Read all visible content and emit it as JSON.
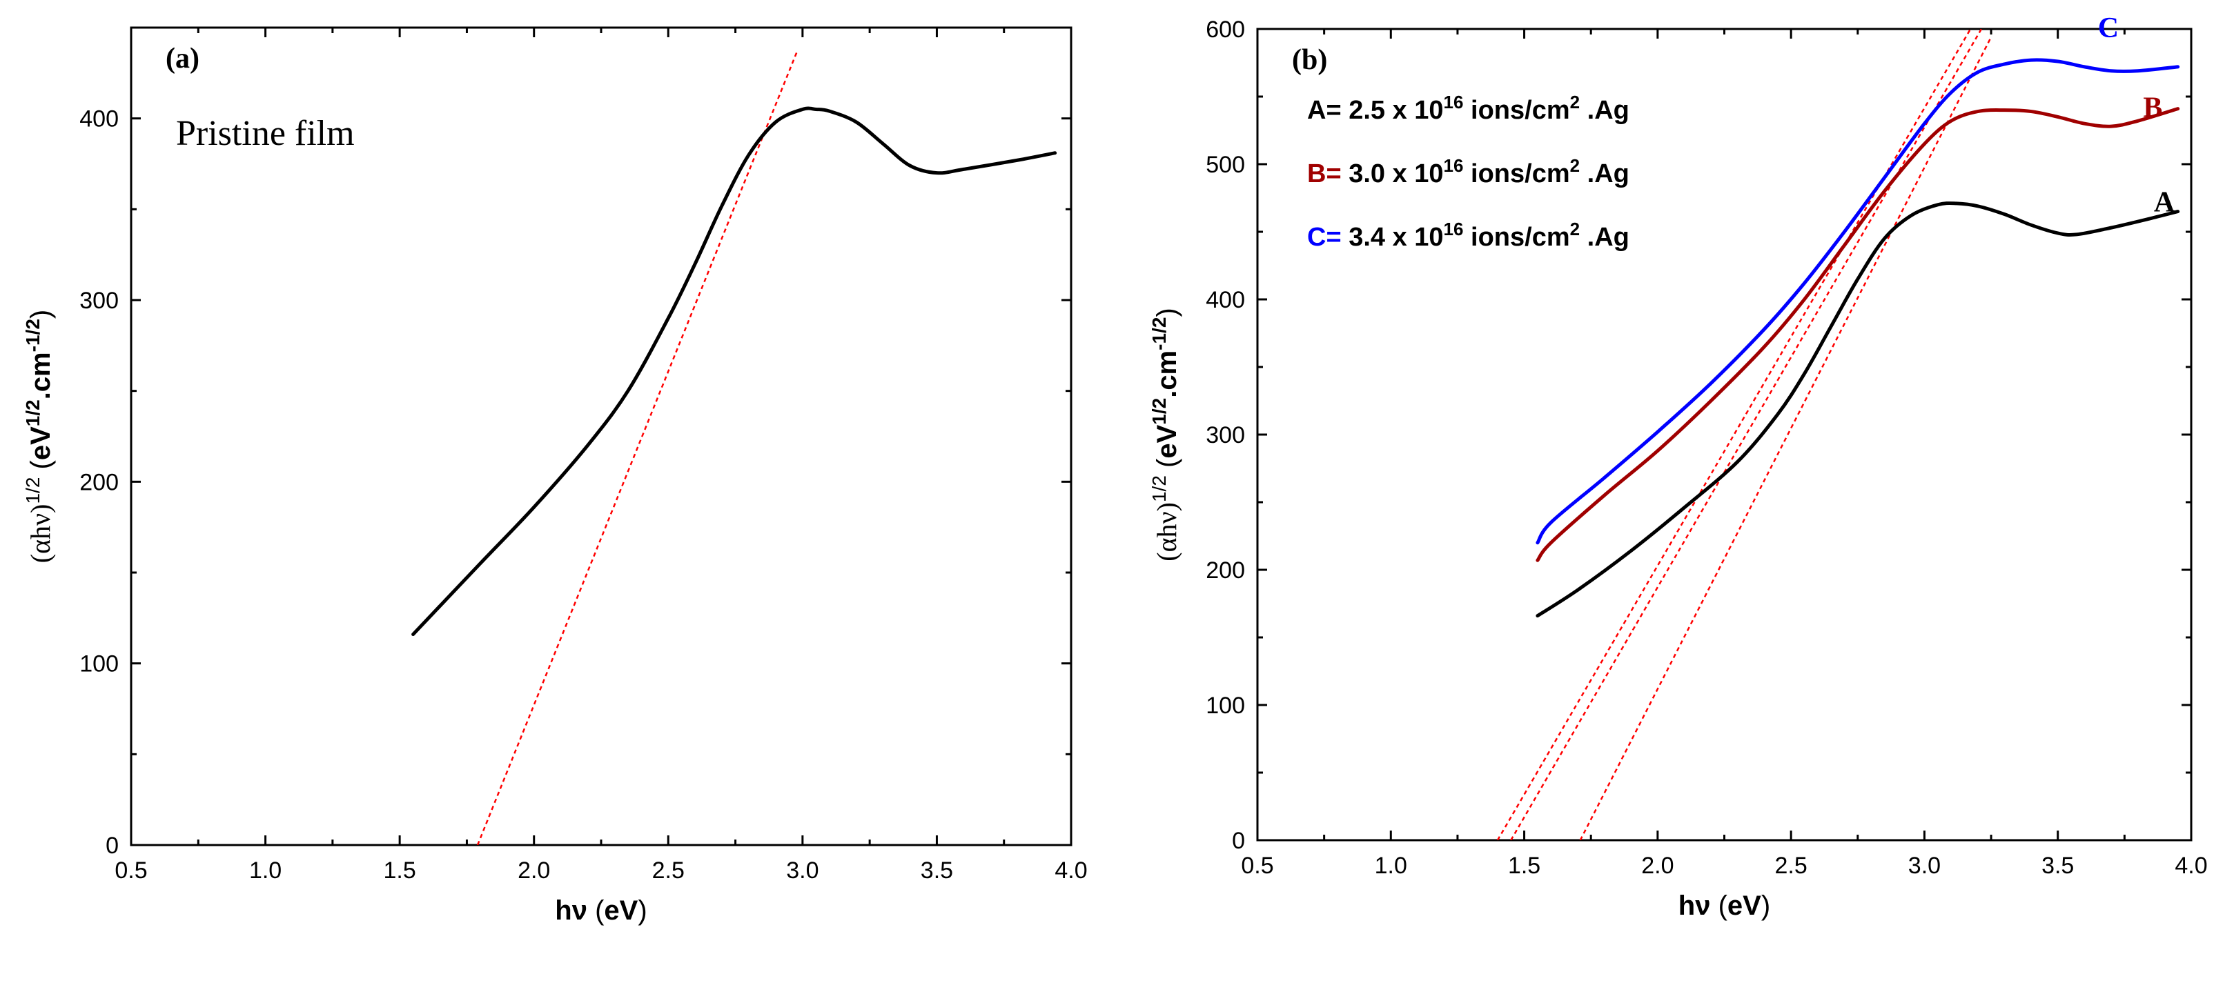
{
  "chart_data": [
    {
      "type": "line",
      "panel_label": "(a)",
      "annotation": "Pristine film",
      "xlabel": "hν (eV)",
      "ylabel": "(αhν)1/2 (eV1/2.cm-1/2)",
      "xlim": [
        0.5,
        4.0
      ],
      "ylim": [
        0,
        450
      ],
      "x_ticks": [
        0.5,
        1.0,
        1.5,
        2.0,
        2.5,
        3.0,
        3.5,
        4.0
      ],
      "x_tick_labels": [
        "0.5",
        "1.0",
        "1.5",
        "2.0",
        "2.5",
        "3.0",
        "3.5",
        "4.0"
      ],
      "y_ticks": [
        0,
        100,
        200,
        300,
        400
      ],
      "y_tick_labels": [
        "0",
        "100",
        "200",
        "300",
        "400"
      ],
      "series": [
        {
          "name": "Pristine film",
          "color": "#000000",
          "x": [
            1.55,
            1.8,
            2.0,
            2.2,
            2.35,
            2.5,
            2.6,
            2.7,
            2.8,
            2.9,
            3.0,
            3.05,
            3.1,
            3.2,
            3.3,
            3.4,
            3.5,
            3.6,
            3.8,
            3.94
          ],
          "y": [
            116,
            155,
            186,
            220,
            250,
            290,
            320,
            352,
            380,
            398,
            405,
            405,
            404,
            398,
            386,
            374,
            370,
            372,
            377,
            381
          ]
        }
      ],
      "tangents": [
        {
          "color": "#ff0000",
          "x": [
            1.79,
            2.98
          ],
          "y": [
            0,
            437
          ]
        }
      ]
    },
    {
      "type": "line",
      "panel_label": "(b)",
      "xlabel": "hν (eV)",
      "ylabel": "(αhν)1/2 (eV1/2.cm-1/2)",
      "xlim": [
        0.5,
        4.0
      ],
      "ylim": [
        0,
        600
      ],
      "x_ticks": [
        0.5,
        1.0,
        1.5,
        2.0,
        2.5,
        3.0,
        3.5,
        4.0
      ],
      "x_tick_labels": [
        "0.5",
        "1.0",
        "1.5",
        "2.0",
        "2.5",
        "3.0",
        "3.5",
        "4.0"
      ],
      "y_ticks": [
        0,
        100,
        200,
        300,
        400,
        500,
        600
      ],
      "y_tick_labels": [
        "0",
        "100",
        "200",
        "300",
        "400",
        "500",
        "600"
      ],
      "legend": [
        {
          "key": "A=",
          "text": "2.5 x 10",
          "sup": "16",
          "rest": " ions/cm",
          "sup2": "2",
          "tail": " .Ag",
          "key_color": "#000000"
        },
        {
          "key": "B=",
          "text": "3.0 x 10",
          "sup": "16",
          "rest": " ions/cm",
          "sup2": "2",
          "tail": " .Ag",
          "key_color": "#a00000"
        },
        {
          "key": "C=",
          "text": "3.4 x 10",
          "sup": "16",
          "rest": " ions/cm",
          "sup2": "2",
          "tail": " .Ag",
          "key_color": "#0000ff"
        }
      ],
      "series": [
        {
          "name": "A",
          "color": "#000000",
          "x": [
            1.55,
            1.7,
            1.9,
            2.1,
            2.3,
            2.45,
            2.55,
            2.65,
            2.75,
            2.85,
            2.95,
            3.05,
            3.12,
            3.2,
            3.3,
            3.4,
            3.5,
            3.57,
            3.7,
            3.85,
            3.95
          ],
          "y": [
            166,
            185,
            214,
            246,
            280,
            315,
            345,
            380,
            415,
            445,
            462,
            470,
            471,
            469,
            463,
            455,
            449,
            448,
            453,
            460,
            465
          ]
        },
        {
          "name": "B",
          "color": "#a00000",
          "x": [
            1.55,
            1.6,
            1.8,
            2.0,
            2.2,
            2.4,
            2.55,
            2.7,
            2.85,
            3.0,
            3.1,
            3.2,
            3.3,
            3.4,
            3.5,
            3.6,
            3.7,
            3.8,
            3.95
          ],
          "y": [
            207,
            220,
            255,
            288,
            325,
            365,
            400,
            440,
            480,
            515,
            532,
            539,
            540,
            539,
            535,
            530,
            528,
            532,
            541
          ]
        },
        {
          "name": "C",
          "color": "#0000ff",
          "x": [
            1.55,
            1.6,
            1.8,
            2.0,
            2.2,
            2.4,
            2.55,
            2.7,
            2.85,
            3.0,
            3.1,
            3.2,
            3.3,
            3.4,
            3.5,
            3.6,
            3.7,
            3.8,
            3.95
          ],
          "y": [
            220,
            235,
            268,
            302,
            338,
            378,
            412,
            450,
            490,
            530,
            553,
            568,
            574,
            577,
            576,
            572,
            569,
            569,
            572
          ]
        }
      ],
      "curve_labels": [
        {
          "text": "A",
          "x": 3.86,
          "y": 465,
          "color": "#000000"
        },
        {
          "text": "B",
          "x": 3.82,
          "y": 535,
          "color": "#a00000"
        },
        {
          "text": "C",
          "x": 3.65,
          "y": 594,
          "color": "#0000ff"
        }
      ],
      "tangents": [
        {
          "color": "#ff0000",
          "x": [
            1.4,
            3.22
          ],
          "y": [
            0,
            616
          ]
        },
        {
          "color": "#ff0000",
          "x": [
            1.45,
            3.24
          ],
          "y": [
            0,
            609
          ]
        },
        {
          "color": "#ff0000",
          "x": [
            1.71,
            3.25
          ],
          "y": [
            0,
            594
          ]
        }
      ]
    }
  ]
}
